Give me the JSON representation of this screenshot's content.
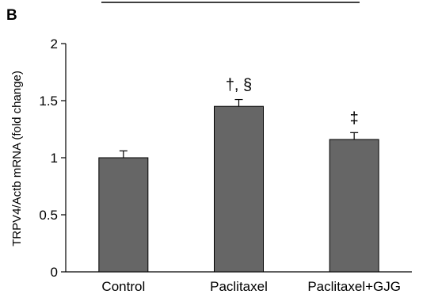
{
  "panel_label": "B",
  "chart_data": {
    "type": "bar",
    "categories": [
      "Control",
      "Paclitaxel",
      "Paclitaxel+GJG"
    ],
    "values": [
      1.0,
      1.45,
      1.16
    ],
    "errors": [
      0.06,
      0.06,
      0.06
    ],
    "annotations": [
      "",
      "†, §",
      "‡"
    ],
    "ylabel": "TRPV4/Actb mRNA  (fold change)",
    "xlabel": "",
    "ylim": [
      0,
      2
    ],
    "yticks": [
      0,
      0.5,
      1,
      1.5,
      2
    ],
    "ytick_labels": [
      "0",
      "0.5",
      "1",
      "1.5",
      "2"
    ],
    "bar_color": "#666666",
    "grid": false
  }
}
